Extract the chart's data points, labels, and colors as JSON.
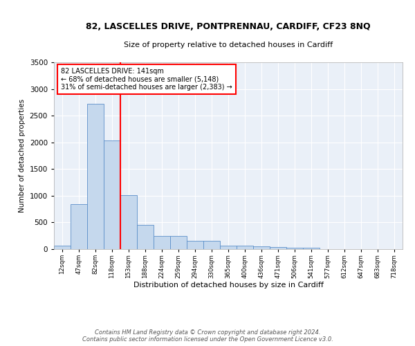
{
  "title1": "82, LASCELLES DRIVE, PONTPRENNAU, CARDIFF, CF23 8NQ",
  "title2": "Size of property relative to detached houses in Cardiff",
  "xlabel": "Distribution of detached houses by size in Cardiff",
  "ylabel": "Number of detached properties",
  "categories": [
    "12sqm",
    "47sqm",
    "82sqm",
    "118sqm",
    "153sqm",
    "188sqm",
    "224sqm",
    "259sqm",
    "294sqm",
    "330sqm",
    "365sqm",
    "400sqm",
    "436sqm",
    "471sqm",
    "506sqm",
    "541sqm",
    "577sqm",
    "612sqm",
    "647sqm",
    "683sqm",
    "718sqm"
  ],
  "values": [
    60,
    840,
    2720,
    2040,
    1010,
    450,
    250,
    250,
    155,
    155,
    60,
    60,
    50,
    35,
    30,
    20,
    5,
    5,
    2,
    2,
    2
  ],
  "bar_color": "#c5d8ed",
  "bar_edge_color": "#5b8fc9",
  "vline_color": "red",
  "annotation_text": "82 LASCELLES DRIVE: 141sqm\n← 68% of detached houses are smaller (5,148)\n31% of semi-detached houses are larger (2,383) →",
  "annotation_box_color": "white",
  "annotation_box_edge_color": "red",
  "footer": "Contains HM Land Registry data © Crown copyright and database right 2024.\nContains public sector information licensed under the Open Government Licence v3.0.",
  "ylim": [
    0,
    3500
  ],
  "axes_background": "#eaf0f8",
  "grid_color": "#ffffff",
  "yticks": [
    0,
    500,
    1000,
    1500,
    2000,
    2500,
    3000,
    3500
  ]
}
